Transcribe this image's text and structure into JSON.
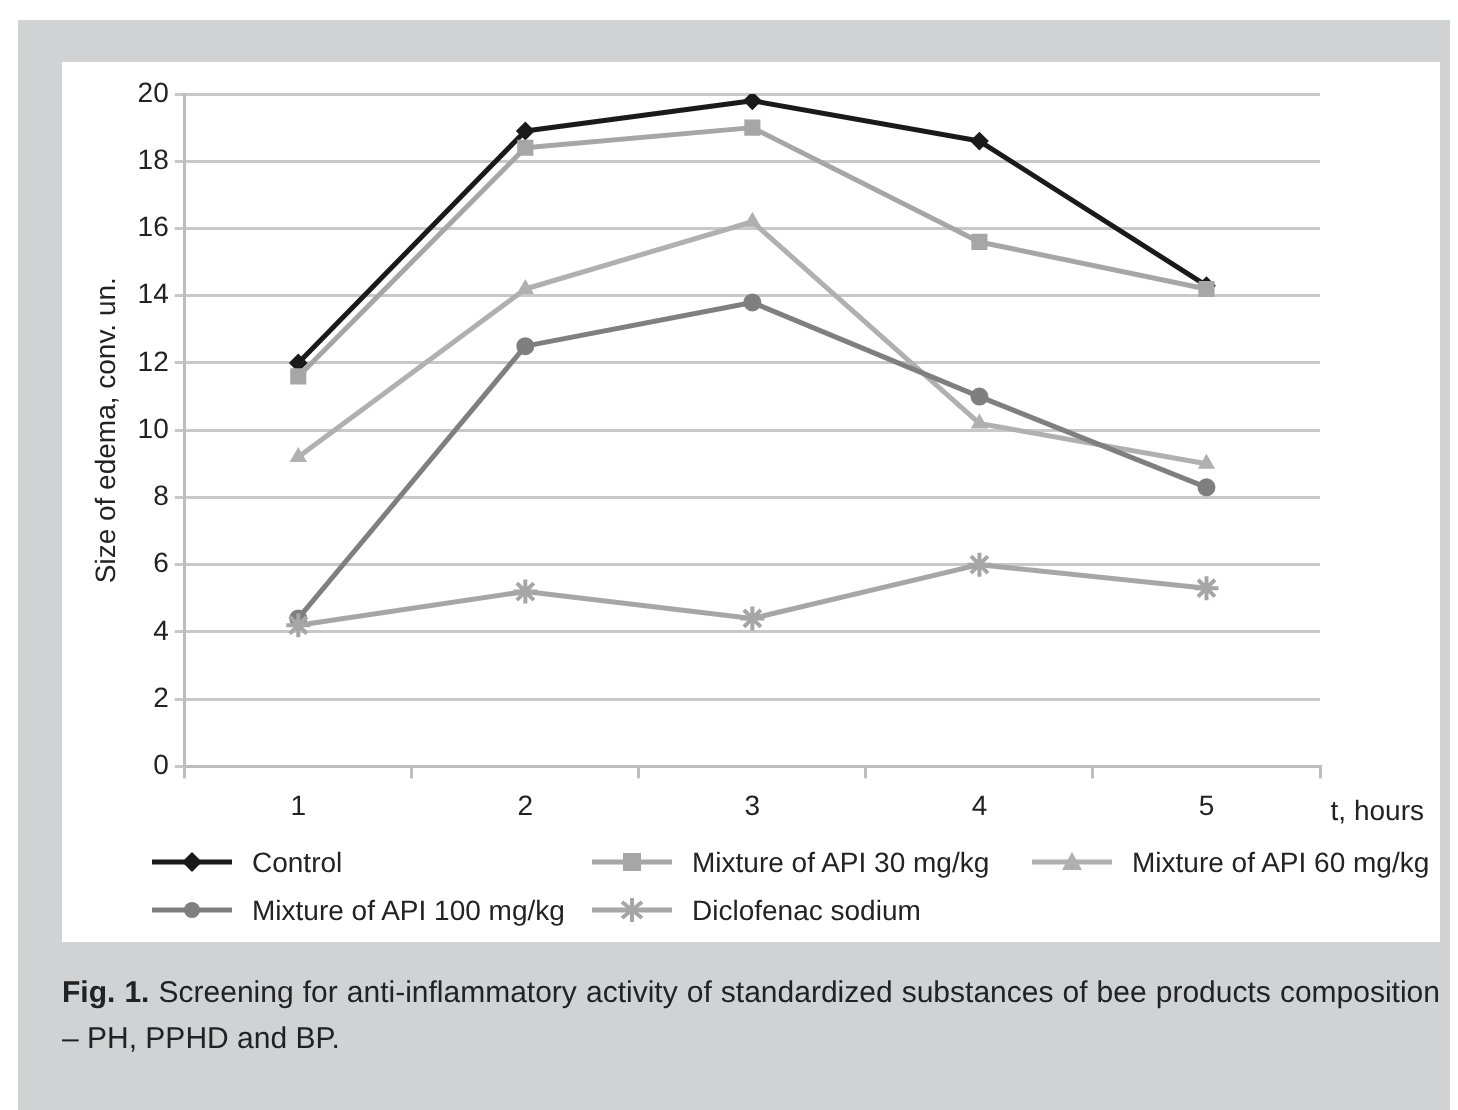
{
  "chart_data": {
    "type": "line",
    "ylabel": "Size of edema, conv. un.",
    "xlabel": "t, hours",
    "categories": [
      "1",
      "2",
      "3",
      "4",
      "5"
    ],
    "series": [
      {
        "name": "Control",
        "color": "#1a1a1a",
        "marker": "diamond",
        "values": [
          12.0,
          18.9,
          19.8,
          18.6,
          14.3
        ]
      },
      {
        "name": "Mixture of API 30 mg/kg",
        "color": "#a6a6a6",
        "marker": "square",
        "values": [
          11.6,
          18.4,
          19.0,
          15.6,
          14.2
        ]
      },
      {
        "name": "Mixture of API 60 mg/kg",
        "color": "#b0b0b0",
        "marker": "triangle",
        "values": [
          9.2,
          14.2,
          16.2,
          10.2,
          9.0
        ]
      },
      {
        "name": "Mixture of API 100 mg/kg",
        "color": "#7f7f7f",
        "marker": "circle",
        "values": [
          4.4,
          12.5,
          13.8,
          11.0,
          8.3
        ]
      },
      {
        "name": "Diclofenac sodium",
        "color": "#a6a6a6",
        "marker": "cross",
        "values": [
          4.2,
          5.2,
          4.4,
          6.0,
          5.3
        ]
      }
    ],
    "ylim": [
      0,
      20
    ],
    "yticks": [
      0,
      2,
      4,
      6,
      8,
      10,
      12,
      14,
      16,
      18,
      20
    ],
    "grid": "y",
    "legend": "bottom",
    "line_style": "solid",
    "annotations": [
      "Fig. 1.",
      "Screening for anti-inflammatory activity of standardized substances of bee products composition – PH, PPHD and BP."
    ]
  }
}
